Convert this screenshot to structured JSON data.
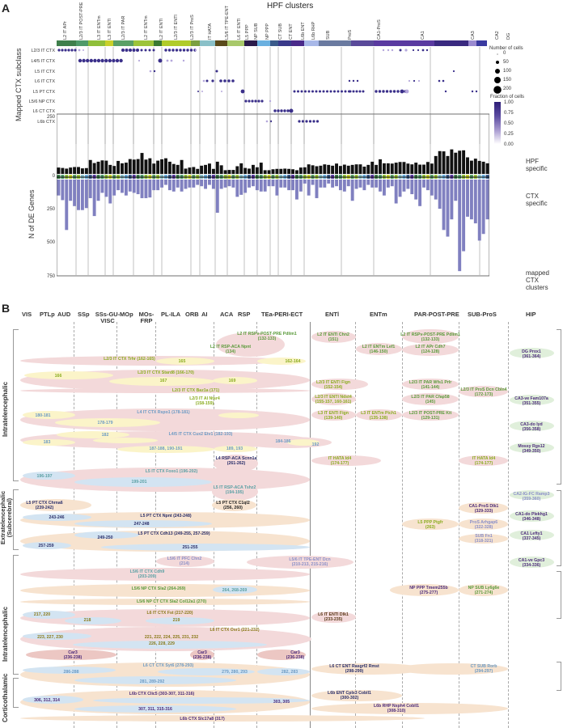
{
  "panelA": {
    "letter": "A",
    "top_title": "HPF clusters",
    "y_title_dot": "Mapped CTX subclass",
    "y_title_bar": "N of DE Genes",
    "right_label_hpf": "HPF specific",
    "right_label_ctx": "CTX specific",
    "bottom_right_label": "mapped CTX clusters",
    "hpf_clusters": [
      "L2 IT APr",
      "L2/3 IT POST-PRE",
      "L3 IT ENTm",
      "L3 IT ENTl",
      "L2/3 IT PAR",
      "L2 IT ENTm",
      "L2 IT ENTl",
      "L2/3 IT ENTl",
      "L2/3 IT ProS",
      "IT HATA",
      "L5/6 IT TPE-ENT",
      "L6 IT ENTl",
      "L5 PPP",
      "NP SUB",
      "NP PPP",
      "CT SUB",
      "CT ENT",
      "L6b ENT",
      "L6b RHP",
      "SUB",
      "ProS",
      "CA1-ProS",
      "CA1",
      "CA3",
      "CA2",
      "DG"
    ],
    "ctx_subclasses": [
      "L2/3 IT CTX",
      "L4/5 IT CTX",
      "L5 IT CTX",
      "L6 IT CTX",
      "L5 PT CTX",
      "L5/6 NP CTX",
      "L6 CT CTX",
      "L6b CTX"
    ],
    "legend": {
      "size_title": "Number of cells",
      "size_values": [
        "0",
        "50",
        "100",
        "150",
        "200"
      ],
      "color_title": "Fraction of cells",
      "color_values": [
        "1.00",
        "0.75",
        "0.50",
        "0.25",
        "0.00"
      ]
    }
  },
  "chart_data": {
    "type": "bar",
    "title": "HPF clusters",
    "xlabel": "",
    "ylabel": "N of DE Genes",
    "yticks": [
      "250",
      "0",
      "250",
      "500",
      "750"
    ],
    "ylim": [
      -750,
      250
    ],
    "series": [
      {
        "name": "HPF specific",
        "values": [
          48,
          45,
          40,
          48,
          52,
          52,
          42,
          44,
          105,
          82,
          92,
          102,
          100,
          68,
          60,
          98,
          80,
          85,
          112,
          108,
          112,
          158,
          108,
          118,
          78,
          100,
          110,
          118,
          92,
          75,
          68,
          105,
          40,
          48,
          52,
          38,
          62,
          68,
          78,
          38,
          92,
          65,
          28,
          30,
          30,
          58,
          80,
          45,
          40,
          68,
          50,
          85,
          28,
          28,
          35,
          38,
          38,
          40,
          38,
          35,
          28,
          48,
          50,
          72,
          65,
          58,
          62,
          72,
          68,
          62,
          78,
          60,
          70,
          62,
          68,
          72,
          72,
          55,
          68,
          92,
          68,
          110,
          80,
          80,
          78,
          85,
          90,
          90,
          78,
          72,
          85,
          70,
          70,
          90,
          78,
          135,
          172,
          170,
          135,
          185,
          160,
          175,
          178,
          125,
          100,
          115,
          98,
          92,
          80
        ]
      },
      {
        "name": "CTX specific",
        "values": [
          -120,
          -155,
          -380,
          -160,
          -200,
          -230,
          -230,
          -215,
          -140,
          -275,
          -160,
          -100,
          -130,
          -180,
          -120,
          -80,
          -100,
          -120,
          -90,
          -100,
          -110,
          -140,
          -140,
          -135,
          -80,
          -80,
          -60,
          -40,
          -80,
          -90,
          -60,
          -90,
          -70,
          -60,
          -60,
          -40,
          -50,
          -70,
          -40,
          -70,
          -250,
          -70,
          -60,
          -50,
          -60,
          -130,
          -115,
          -100,
          -60,
          -50,
          -80,
          -90,
          -90,
          -50,
          -50,
          -120,
          -60,
          -60,
          -80,
          -80,
          -150,
          -90,
          -30,
          -120,
          -40,
          -140,
          -60,
          -60,
          -30,
          -60,
          -50,
          -80,
          -90,
          -50,
          -160,
          -70,
          -60,
          -80,
          -40,
          -60,
          -60,
          -90,
          -120,
          -60,
          -50,
          -180,
          -130,
          -90,
          -70,
          -110,
          -150,
          -200,
          -60,
          -80,
          -120,
          -150,
          -220,
          -380,
          -430,
          -300,
          -160,
          -690,
          -540,
          -280,
          -300,
          -330,
          -460,
          -410,
          -300
        ]
      }
    ]
  },
  "panelB": {
    "letter": "B",
    "regions": [
      "VIS",
      "PTLp",
      "AUD",
      "SSp",
      "SSs-GU-VISC",
      "MOp",
      "MOs-FRP",
      "PL-ILA",
      "ORB",
      "AI",
      "ACA",
      "RSP",
      "TEa-PERI-ECT",
      "ENTl",
      "ENTm",
      "PAR-POST-PRE",
      "SUB-ProS",
      "HIP"
    ],
    "groups": [
      "Intratelencephalic",
      "Extratelencephalic (Subcerebral)",
      "Intratelencephalic",
      "Corticothalamic"
    ],
    "labels": {
      "l2_rsp_post_pre": "L2 IT RSPv-POST-PRE Pdlim1",
      "l2_rsp_post_pre_n": "(132-133)",
      "l2_rsp_aca": "L2 IT RSP-ACA Npnt",
      "l2_rsp_aca_n": "(134)",
      "l23_trhr": "L2/3 IT CTX Trhr (162-165)",
      "n165": "165",
      "n162_164": "162-164",
      "l23_stard8": "L2/3 IT CTX Stard8 (166-170)",
      "n166": "166",
      "n167": "167",
      "n169": "169",
      "l23_baz1a": "L2/3 IT CTX Baz1a (171)",
      "l23_ai": "L2/3 IT AI Ntsr4",
      "l23_ai_n": "(158-159)",
      "l4_rspo1": "L4 IT CTX Rspo1 (178-181)",
      "n180_181": "180-181",
      "n178_179": "178-179",
      "l45_cux2": "L4/5 IT CTX Cux2 Etv1 (182-193)",
      "n182": "182",
      "n183": "183",
      "n184_186": "184-186",
      "n192": "192",
      "n187_191": "187-188, 190-191",
      "n189_193": "189, 193",
      "l4_rsp_aca": "L4 RSP-ACA Scnn1a",
      "l4_rsp_aca_n": "(261-262)",
      "l5_foxo1": "L5 IT CTX Foxo1 (196-202)",
      "n196_197": "196-197",
      "n199_201": "199-201",
      "l5_rsp_aca": "L5 IT RSP-ACA Tshz2",
      "l5_rsp_aca_n": "(194-195)",
      "l2_entl": "L2 IT ENTl Chn2",
      "l2_entl_n": "(151)",
      "l2_entm": "L2 IT ENTm Lef1",
      "l2_entm_n": "(146-150)",
      "l2_apr": "L2 IT APr Cdh7",
      "l2_apr_n": "(124-128)",
      "l23_entl_fign": "L2/3 IT ENTl Fign",
      "l23_entl_fign_n": "(152-154)",
      "l23_par_wfs1": "L2/3 IT PAR Wfs1 Prlr",
      "l23_par_wfs1_n": "(141-144)",
      "l23_pros": "L2/3 IT ProS Dcn Cbln4",
      "l23_pros_n": "(172-173)",
      "l23_entl_ndst4": "L2/3 IT ENTl Ndst4",
      "l23_entl_ndst4_n": "(155-157, 160-161)",
      "l23_par_cfap": "L2/3 IT PAR Cfap58",
      "l23_par_cfap_n": "(145)",
      "l3_entl": "L3 IT ENTl Fign",
      "l3_entl_n": "(139-140)",
      "l3_entm": "L3 IT ENTm Pich1",
      "l3_entm_n": "(135-138)",
      "l23_post": "L2/3 IT POST-PRE Kit",
      "l23_post_n": "(129-131)",
      "dg": "DG Prox1",
      "dg_n": "(361-364)",
      "ca3ve": "CA3-ve Fam107a",
      "ca3ve_n": "(351-355)",
      "ca3do": "CA3-do Iyd",
      "ca3do_n": "(356-358)",
      "mossy": "Mossy Rgs12",
      "mossy_n": "(349-350)",
      "hata1": "IT HATA Id4",
      "hata1_n": "(174-177)",
      "hata2": "IT HATA Id4",
      "hata2_n": "(174-177)",
      "ca2": "CA2-IG-FC Ramp3",
      "ca2_n": "(359-360)",
      "ca1pros": "CA1-ProS Dlk1",
      "ca1pros_n": "(329-333)",
      "ca1do": "CA1-do Plekhg1",
      "ca1do_n": "(346-348)",
      "l5ppp": "L5 PPP Ptgfr",
      "l5ppp_n": "(263)",
      "pros_arh": "ProS Arhgap6",
      "pros_arh_n": "(322-328)",
      "sub_fn1": "SUB Fn1",
      "sub_fn1_n": "(318-321)",
      "ca1_lefty": "CA1 Lefty1",
      "ca1_lefty_n": "(337-345)",
      "l5pt_chrna6": "L5 PT CTX Chrna6",
      "l5pt_chrna6_n": "(239-242)",
      "l5pt_c1ql2": "L5 PT CTX C1ql2",
      "l5pt_c1ql2_n": "(256, 260)",
      "l5pt_npnt": "L5 PT CTX Npnt (243-248)",
      "n243_246": "243-246",
      "n247_248": "247-248",
      "l5pt_cdh13": "L5 PT CTX Cdh13 (249-255, 257-259)",
      "n249_250": "249-250",
      "n257_259": "257-259",
      "n251_255": "251-255",
      "l56_pfc": "L5/6 IT PFC Chn2",
      "l56_pfc_n": "(214)",
      "l56_tpe": "L5/6 IT TPE-ENT Dcn",
      "l56_tpe_n": "(210-213, 215-216)",
      "ca1ve": "CA1-ve Gpc3",
      "ca1ve_n": "(334-336)",
      "l56_cdh9": "L5/6 IT CTX Cdh9",
      "l56_cdh9_n": "(203-209)",
      "l56_np_sla2": "L5/6 NP CTX Sla2 (264-269)",
      "n264_269": "264, 268-269",
      "np_ppp": "NP PPP Tmem255b",
      "np_ppp_n": "(275-277)",
      "np_sub": "NP SUB Ly6g6e",
      "np_sub_n": "(271-274)",
      "l56_np_ct": "L5/6 NP CT CTX Sla2 Col12a1 (270)",
      "l6_fst": "L6 IT CTX Fst (217-220)",
      "n217_220": "217, 220",
      "n218": "218",
      "n219": "219",
      "l6_entl": "L6 IT ENTl Dlk1",
      "l6_entl_n": "(233-235)",
      "l6_osr1": "L6 IT CTX Osr1 (221-232)",
      "n223_230": "223, 227, 230",
      "n221_232": "221, 222, 224, 225, 231, 232",
      "n226_229": "226, 228, 229",
      "car3": "Car3",
      "car3_n": "(236-238)",
      "l6ct_syt6": "L6 CT CTX Syt6 (278-293)",
      "n286_288": "286-288",
      "n279_293": "279, 280, 293",
      "n282_283": "282, 283",
      "n281_292": "281, 289-292",
      "l6ct_ent": "L6 CT ENT Rasgrf2 Rmst",
      "l6ct_ent_n": "(298-299)",
      "ct_sub": "CT SUB Rorb",
      "ct_sub_n": "(294-297)",
      "l6b_clic5": "L6b CTX Clic5 (303-307, 311-316)",
      "n306_314": "306, 312, 314",
      "n303_305": "303, 305",
      "n307_316": "307, 311, 315-316",
      "l6b_ent": "L6b ENT Cplx3 Cobll1",
      "l6b_ent_n": "(300-302)",
      "l6b_rhp": "L6b RHP Nxph4 Cobll1",
      "l6b_rhp_n": "(308-310)",
      "l6b_slc": "L6b CTX Slc17a8 (317)"
    }
  }
}
